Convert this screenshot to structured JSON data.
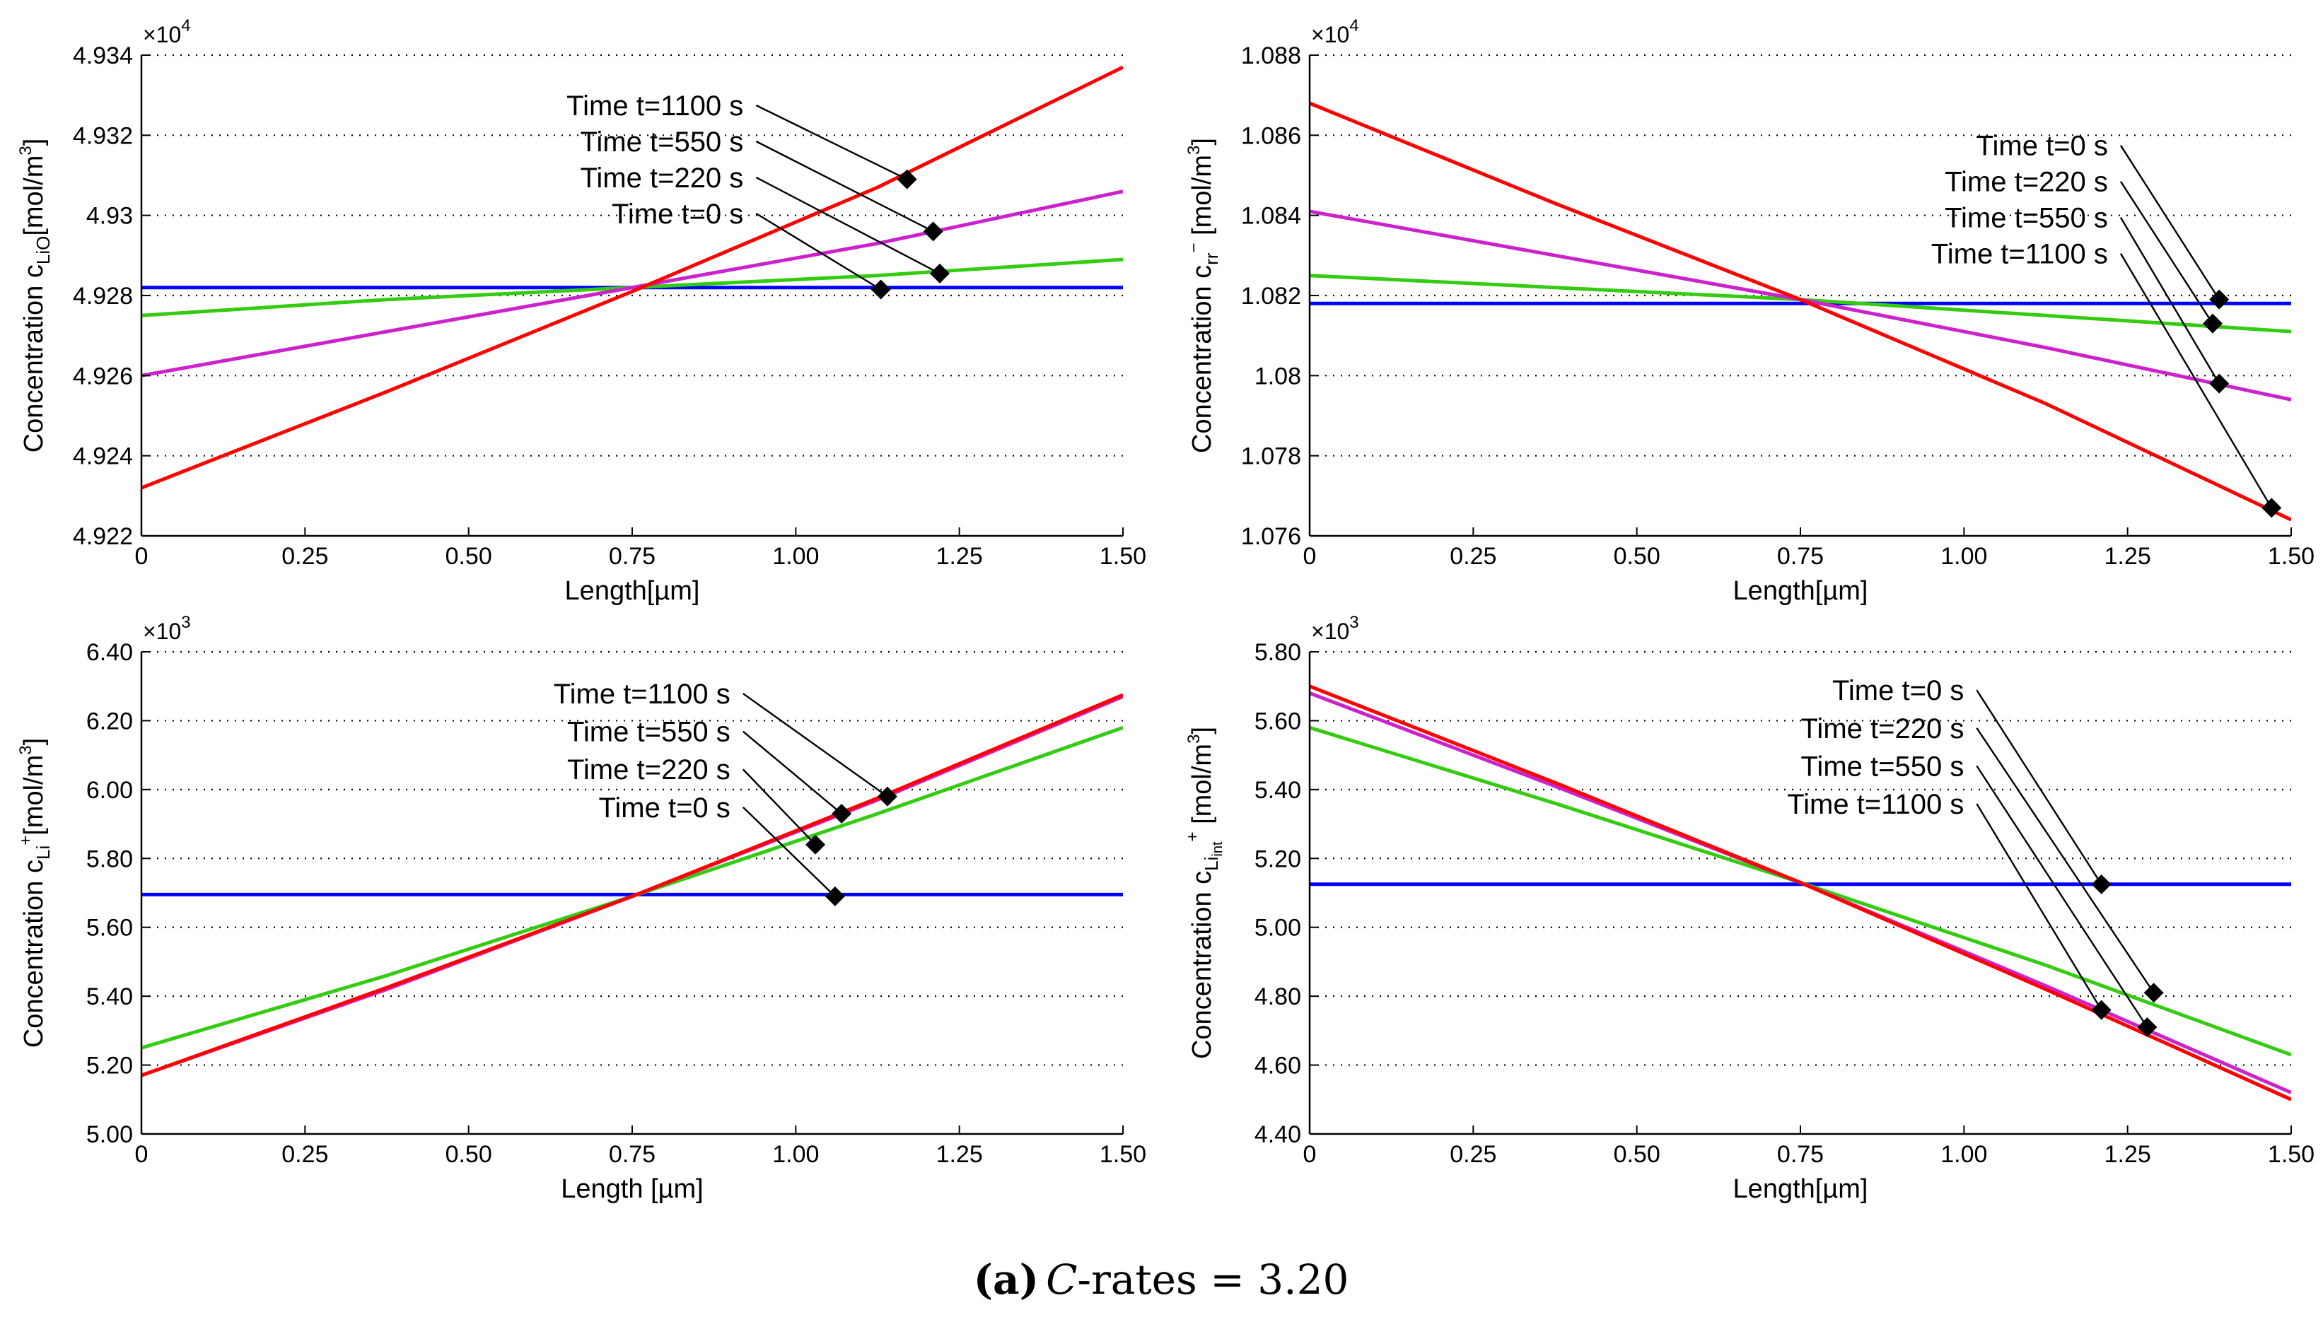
{
  "colors": {
    "t0": "#0000ff",
    "t220": "#33cc11",
    "t550": "#cc22cc",
    "t1100": "#ff0000",
    "grid": "#000000",
    "marker": "#000000"
  },
  "caption": {
    "bold": "(a)",
    "var": "C",
    "rest": "-rates = 3.20"
  },
  "chart_data": [
    {
      "id": "p1",
      "type": "line",
      "title": "",
      "xlabel": "Length[µm]",
      "ylabel": {
        "main": "Concentration c",
        "sub": "LiO",
        "sup": "",
        "unit": "[mol/m",
        "unit_sup": "3",
        "unit_end": "]"
      },
      "multiplier": {
        "base": "×10",
        "exp": "4"
      },
      "xlim": [
        0,
        1.5
      ],
      "ylim": [
        4.922,
        4.934
      ],
      "xticks": [
        0,
        0.25,
        0.5,
        0.75,
        1.0,
        1.25,
        1.5
      ],
      "xtick_labels": [
        "0",
        "0.25",
        "0.50",
        "0.75",
        "1.00",
        "1.25",
        "1.50"
      ],
      "yticks": [
        4.922,
        4.924,
        4.926,
        4.928,
        4.93,
        4.932,
        4.934
      ],
      "ytick_labels": [
        "4.922",
        "4.924",
        "4.926",
        "4.928",
        "4.93",
        "4.932",
        "4.934"
      ],
      "series": [
        {
          "name": "Time t=0 s",
          "color_key": "t0",
          "x": [
            0,
            1.5
          ],
          "y": [
            4.9282,
            4.9282
          ]
        },
        {
          "name": "Time t=220 s",
          "color_key": "t220",
          "x": [
            0,
            0.375,
            0.75,
            1.125,
            1.5
          ],
          "y": [
            4.9275,
            4.9279,
            4.9282,
            4.9285,
            4.9289
          ]
        },
        {
          "name": "Time t=550 s",
          "color_key": "t550",
          "x": [
            0,
            0.375,
            0.75,
            1.125,
            1.5
          ],
          "y": [
            4.926,
            4.9271,
            4.9282,
            4.9293,
            4.9306
          ]
        },
        {
          "name": "Time t=1100 s",
          "color_key": "t1100",
          "x": [
            0,
            0.375,
            0.75,
            1.125,
            1.5
          ],
          "y": [
            4.9232,
            4.9256,
            4.9281,
            4.9307,
            4.9337
          ]
        }
      ],
      "annotations": [
        {
          "text": "Time t=1100 s",
          "series": 3,
          "x": 1.17,
          "y": 4.9309,
          "label_x": 0.92,
          "label_y": 4.9325
        },
        {
          "text": "Time t=550 s",
          "series": 2,
          "x": 1.21,
          "y": 4.9296,
          "label_x": 0.92,
          "label_y": 4.9316
        },
        {
          "text": "Time t=220 s",
          "series": 1,
          "x": 1.22,
          "y": 4.92855,
          "label_x": 0.92,
          "label_y": 4.9307
        },
        {
          "text": "Time t=0 s",
          "series": 0,
          "x": 1.13,
          "y": 4.92815,
          "label_x": 0.92,
          "label_y": 4.9298
        }
      ]
    },
    {
      "id": "p2",
      "type": "line",
      "title": "",
      "xlabel": "Length[µm]",
      "ylabel": {
        "main": "Concentration c",
        "sub": "rr",
        "sup": "−",
        "unit": " [mol/m",
        "unit_sup": "3",
        "unit_end": "]"
      },
      "multiplier": {
        "base": "×10",
        "exp": "4"
      },
      "xlim": [
        0,
        1.5
      ],
      "ylim": [
        1.076,
        1.088
      ],
      "xticks": [
        0,
        0.25,
        0.5,
        0.75,
        1.0,
        1.25,
        1.5
      ],
      "xtick_labels": [
        "0",
        "0.25",
        "0.50",
        "0.75",
        "1.00",
        "1.25",
        "1.50"
      ],
      "yticks": [
        1.076,
        1.078,
        1.08,
        1.082,
        1.084,
        1.086,
        1.088
      ],
      "ytick_labels": [
        "1.076",
        "1.078",
        "1.08",
        "1.082",
        "1.084",
        "1.086",
        "1.088"
      ],
      "series": [
        {
          "name": "Time t=0 s",
          "color_key": "t0",
          "x": [
            0,
            1.5
          ],
          "y": [
            1.0818,
            1.0818
          ]
        },
        {
          "name": "Time t=220 s",
          "color_key": "t220",
          "x": [
            0,
            0.375,
            0.75,
            1.125,
            1.5
          ],
          "y": [
            1.0825,
            1.0822,
            1.0819,
            1.0815,
            1.0811
          ]
        },
        {
          "name": "Time t=550 s",
          "color_key": "t550",
          "x": [
            0,
            0.375,
            0.75,
            1.125,
            1.5
          ],
          "y": [
            1.0841,
            1.083,
            1.0819,
            1.0807,
            1.0794
          ]
        },
        {
          "name": "Time t=1100 s",
          "color_key": "t1100",
          "x": [
            0,
            0.375,
            0.75,
            1.125,
            1.5
          ],
          "y": [
            1.0868,
            1.0843,
            1.0819,
            1.0793,
            1.0764
          ]
        }
      ],
      "annotations": [
        {
          "text": "Time t=0 s",
          "series": 0,
          "x": 1.39,
          "y": 1.0819,
          "label_x": 1.22,
          "label_y": 1.0855
        },
        {
          "text": "Time t=220 s",
          "series": 1,
          "x": 1.38,
          "y": 1.0813,
          "label_x": 1.22,
          "label_y": 1.0846
        },
        {
          "text": "Time t=550 s",
          "series": 2,
          "x": 1.39,
          "y": 1.0798,
          "label_x": 1.22,
          "label_y": 1.0837
        },
        {
          "text": "Time t=1100 s",
          "series": 3,
          "x": 1.47,
          "y": 1.0767,
          "label_x": 1.22,
          "label_y": 1.0828
        }
      ]
    },
    {
      "id": "p3",
      "type": "line",
      "title": "",
      "xlabel": "Length [µm]",
      "ylabel": {
        "main": "Concentration c",
        "sub": "Li",
        "sup": "+",
        "unit": "[mol/m",
        "unit_sup": "3",
        "unit_end": "]"
      },
      "multiplier": {
        "base": "×10",
        "exp": "3"
      },
      "xlim": [
        0,
        1.5
      ],
      "ylim": [
        5.0,
        6.4
      ],
      "xticks": [
        0,
        0.25,
        0.5,
        0.75,
        1.0,
        1.25,
        1.5
      ],
      "xtick_labels": [
        "0",
        "0.25",
        "0.50",
        "0.75",
        "1.00",
        "1.25",
        "1.50"
      ],
      "yticks": [
        5.0,
        5.2,
        5.4,
        5.6,
        5.8,
        6.0,
        6.2,
        6.4
      ],
      "ytick_labels": [
        "5.00",
        "5.20",
        "5.40",
        "5.60",
        "5.80",
        "6.00",
        "6.20",
        "6.40"
      ],
      "series": [
        {
          "name": "Time t=0 s",
          "color_key": "t0",
          "x": [
            0,
            1.5
          ],
          "y": [
            5.695,
            5.695
          ]
        },
        {
          "name": "Time t=220 s",
          "color_key": "t220",
          "x": [
            0,
            0.375,
            0.75,
            1.125,
            1.5
          ],
          "y": [
            5.25,
            5.46,
            5.69,
            5.93,
            6.18
          ]
        },
        {
          "name": "Time t=550 s",
          "color_key": "t550",
          "x": [
            0,
            0.375,
            0.75,
            1.125,
            1.5
          ],
          "y": [
            5.17,
            5.42,
            5.69,
            5.97,
            6.27
          ]
        },
        {
          "name": "Time t=1100 s",
          "color_key": "t1100",
          "x": [
            0,
            0.375,
            0.75,
            1.125,
            1.5
          ],
          "y": [
            5.17,
            5.425,
            5.69,
            5.975,
            6.275
          ]
        }
      ],
      "annotations": [
        {
          "text": "Time t=1100 s",
          "series": 3,
          "x": 1.14,
          "y": 5.98,
          "label_x": 0.9,
          "label_y": 6.25
        },
        {
          "text": "Time t=550 s",
          "series": 2,
          "x": 1.07,
          "y": 5.93,
          "label_x": 0.9,
          "label_y": 6.14
        },
        {
          "text": "Time t=220 s",
          "series": 1,
          "x": 1.03,
          "y": 5.84,
          "label_x": 0.9,
          "label_y": 6.03
        },
        {
          "text": "Time t=0 s",
          "series": 0,
          "x": 1.06,
          "y": 5.69,
          "label_x": 0.9,
          "label_y": 5.92
        }
      ]
    },
    {
      "id": "p4",
      "type": "line",
      "title": "",
      "xlabel": "Length[µm]",
      "ylabel": {
        "main": "Concentration c",
        "sub": "Li",
        "sub2": "int",
        "sup": "+",
        "unit": " [mol/m",
        "unit_sup": "3",
        "unit_end": "]"
      },
      "multiplier": {
        "base": "×10",
        "exp": "3"
      },
      "xlim": [
        0,
        1.5
      ],
      "ylim": [
        4.4,
        5.8
      ],
      "xticks": [
        0,
        0.25,
        0.5,
        0.75,
        1.0,
        1.25,
        1.5
      ],
      "xtick_labels": [
        "0",
        "0.25",
        "0.50",
        "0.75",
        "1.00",
        "1.25",
        "1.50"
      ],
      "yticks": [
        4.4,
        4.6,
        4.8,
        5.0,
        5.2,
        5.4,
        5.6,
        5.8
      ],
      "ytick_labels": [
        "4.40",
        "4.60",
        "4.80",
        "5.00",
        "5.20",
        "5.40",
        "5.60",
        "5.80"
      ],
      "series": [
        {
          "name": "Time t=0 s",
          "color_key": "t0",
          "x": [
            0,
            1.5
          ],
          "y": [
            5.125,
            5.125
          ]
        },
        {
          "name": "Time t=220 s",
          "color_key": "t220",
          "x": [
            0,
            0.375,
            0.75,
            1.125,
            1.5
          ],
          "y": [
            5.58,
            5.36,
            5.13,
            4.89,
            4.63
          ]
        },
        {
          "name": "Time t=550 s",
          "color_key": "t550",
          "x": [
            0,
            0.375,
            0.75,
            1.125,
            1.5
          ],
          "y": [
            5.68,
            5.41,
            5.13,
            4.83,
            4.52
          ]
        },
        {
          "name": "Time t=1100 s",
          "color_key": "t1100",
          "x": [
            0,
            0.375,
            0.75,
            1.125,
            1.5
          ],
          "y": [
            5.7,
            5.42,
            5.13,
            4.82,
            4.5
          ]
        }
      ],
      "annotations": [
        {
          "text": "Time t=0 s",
          "series": 0,
          "x": 1.21,
          "y": 5.125,
          "label_x": 1.0,
          "label_y": 5.66
        },
        {
          "text": "Time t=220 s",
          "series": 1,
          "x": 1.29,
          "y": 4.81,
          "label_x": 1.0,
          "label_y": 5.55
        },
        {
          "text": "Time t=550 s",
          "series": 2,
          "x": 1.28,
          "y": 4.71,
          "label_x": 1.0,
          "label_y": 5.44
        },
        {
          "text": "Time t=1100 s",
          "series": 3,
          "x": 1.21,
          "y": 4.76,
          "label_x": 1.0,
          "label_y": 5.33
        }
      ]
    }
  ]
}
